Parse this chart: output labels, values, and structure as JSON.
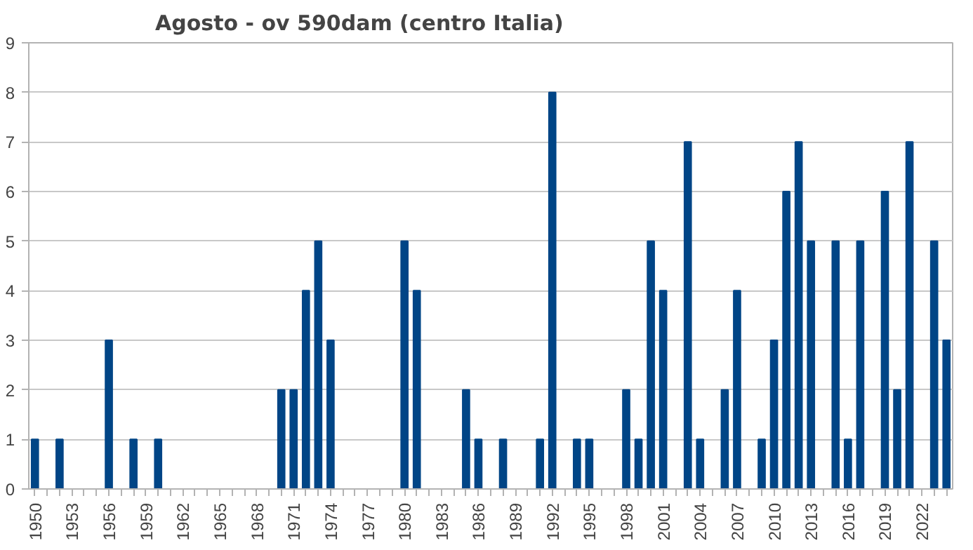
{
  "chart_data": {
    "type": "bar",
    "title": "Agosto - ov 590dam (centro Italia)",
    "categories": [
      "1950",
      null,
      null,
      "1953",
      null,
      null,
      "1956",
      null,
      null,
      "1959",
      null,
      null,
      "1962",
      null,
      null,
      "1965",
      null,
      null,
      "1968",
      null,
      null,
      "1971",
      null,
      null,
      "1974",
      null,
      null,
      "1977",
      null,
      null,
      "1980",
      null,
      null,
      "1983",
      null,
      null,
      "1986",
      null,
      null,
      "1989",
      null,
      null,
      "1992",
      null,
      null,
      "1995",
      null,
      null,
      "1998",
      null,
      null,
      "2001",
      null,
      null,
      "2004",
      null,
      null,
      "2007",
      null,
      null,
      "2010",
      null,
      null,
      "2013",
      null,
      null,
      "2016",
      null,
      null,
      "2019",
      null,
      null,
      "2022",
      null,
      null
    ],
    "values": [
      1,
      0,
      1,
      0,
      0,
      0,
      3,
      0,
      1,
      0,
      1,
      0,
      0,
      0,
      0,
      0,
      0,
      0,
      0,
      0,
      2,
      2,
      4,
      5,
      3,
      0,
      0,
      0,
      0,
      0,
      5,
      4,
      0,
      0,
      0,
      2,
      1,
      0,
      1,
      0,
      0,
      1,
      8,
      0,
      1,
      1,
      0,
      0,
      2,
      1,
      5,
      4,
      0,
      7,
      1,
      0,
      2,
      4,
      0,
      1,
      3,
      6,
      7,
      5,
      0,
      5,
      1,
      5,
      0,
      6,
      2,
      7,
      0,
      5,
      3
    ],
    "color": "#004586",
    "ylim": [
      0,
      9
    ],
    "yticks": [
      0,
      1,
      2,
      3,
      4,
      5,
      6,
      7,
      8,
      9
    ],
    "grid": "y"
  }
}
